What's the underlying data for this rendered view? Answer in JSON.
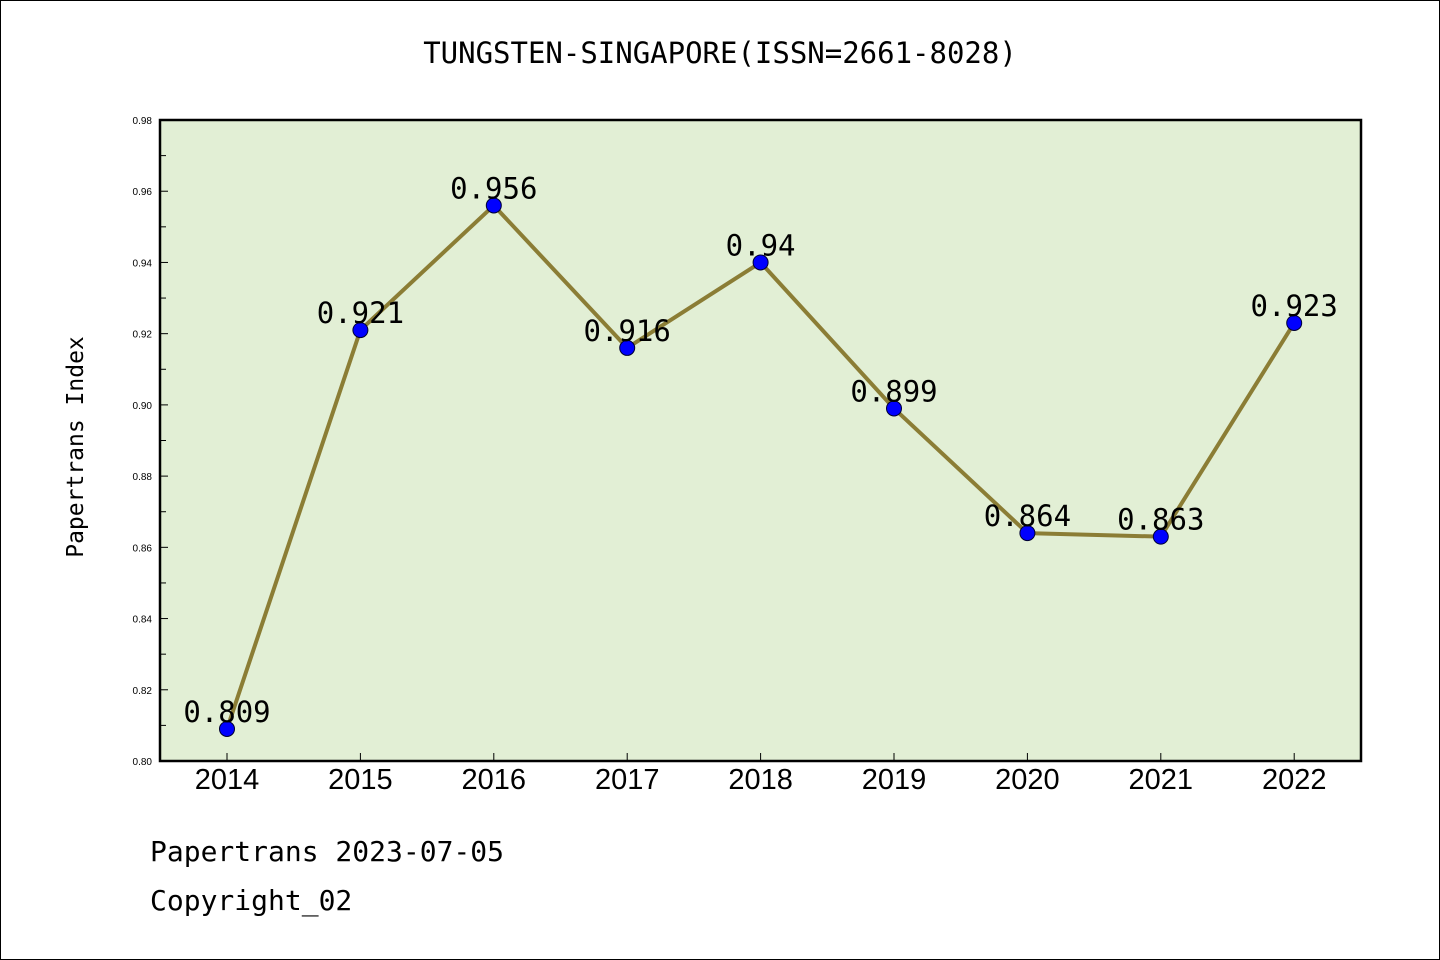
{
  "chart_data": {
    "type": "line",
    "title": "TUNGSTEN-SINGAPORE(ISSN=2661-8028)",
    "xlabel": "",
    "ylabel": "Papertrans Index",
    "x": [
      "2014",
      "2015",
      "2016",
      "2017",
      "2018",
      "2019",
      "2020",
      "2021",
      "2022"
    ],
    "series": [
      {
        "values": [
          0.809,
          0.921,
          0.956,
          0.916,
          0.94,
          0.899,
          0.864,
          0.863,
          0.923
        ],
        "data_labels": [
          "0.809",
          "0.921",
          "0.956",
          "0.916",
          "0.94",
          "0.899",
          "0.864",
          "0.863",
          "0.923"
        ]
      }
    ],
    "ylim": [
      0.8,
      0.98
    ],
    "yticks": [
      "0.80",
      "0.82",
      "0.84",
      "0.86",
      "0.88",
      "0.90",
      "0.92",
      "0.94",
      "0.96",
      "0.98"
    ],
    "grid": false,
    "colors": {
      "plot_background": "#e2efd5",
      "line": "#8b7d35",
      "marker": "#0000ff"
    }
  },
  "footer": {
    "date_text": "Papertrans 2023-07-05",
    "copyright_text": "Copyright_02"
  }
}
